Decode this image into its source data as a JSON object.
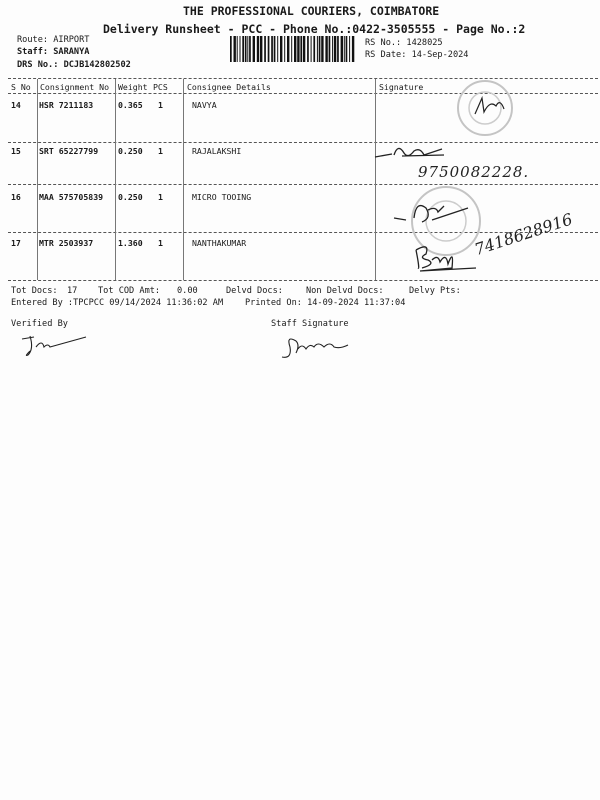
{
  "header": {
    "company": "THE PROFESSIONAL COURIERS, COIMBATORE",
    "subtitle": "Delivery Runsheet - PCC - Phone No.:0422-3505555 - Page No.:2",
    "route": "Route: AIRPORT",
    "staff": "Staff: SARANYA",
    "drs_no": "DRS No.: DCJB142802502",
    "rs_no": "RS No.: 1428025",
    "rs_date": "RS Date: 14-Sep-2024"
  },
  "table": {
    "columns": [
      "S No",
      "Consignment No",
      "Weight",
      "PCS",
      "Consignee Details",
      "Signature"
    ],
    "rows": [
      {
        "sno": "14",
        "consignment": "HSR 7211183",
        "weight": "0.365",
        "pcs": "1",
        "consignee": "NAVYA",
        "note": ""
      },
      {
        "sno": "15",
        "consignment": "SRT 65227799",
        "weight": "0.250",
        "pcs": "1",
        "consignee": "RAJALAKSHI",
        "note": "9750082228."
      },
      {
        "sno": "16",
        "consignment": "MAA 575705839",
        "weight": "0.250",
        "pcs": "1",
        "consignee": "MICRO TOOING",
        "note": ""
      },
      {
        "sno": "17",
        "consignment": "MTR 2503937",
        "weight": "1.360",
        "pcs": "1",
        "consignee": "NANTHAKUMAR",
        "note": "7418628916"
      }
    ]
  },
  "footer": {
    "tot_docs_label": "Tot Docs:",
    "tot_docs": "17",
    "tot_cod_label": "Tot COD Amt:",
    "tot_cod": "0.00",
    "delvd_docs_label": "Delvd Docs:",
    "non_delvd_label": "Non Delvd Docs:",
    "delvy_pts_label": "Delvy Pts:",
    "entered_by": "Entered By :TPCPCC 09/14/2024 11:36:02 AM",
    "printed_on": "Printed On: 14-09-2024 11:37:04",
    "verified_by": "Verified By",
    "staff_signature": "Staff Signature"
  },
  "colors": {
    "ink": "#1a1a1a",
    "stamp": "#bbbbbb"
  }
}
